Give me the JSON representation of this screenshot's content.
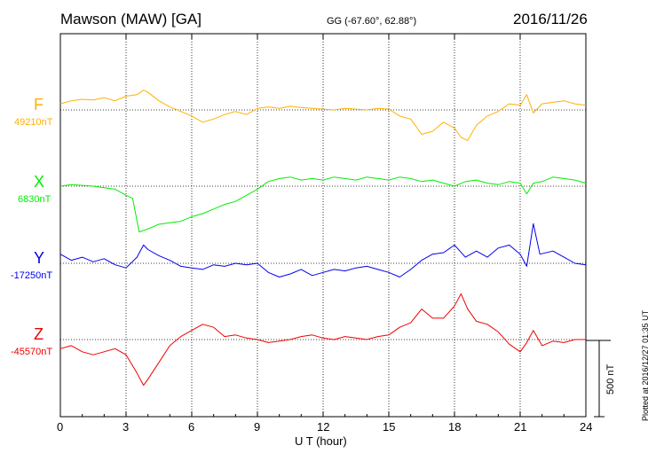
{
  "header": {
    "station": "Mawson (MAW)  [GA]",
    "coords": "GG (-67.60°,  62.88°)",
    "date": "2016/11/26"
  },
  "footer": {
    "plotted_note": "Plotted at 2016/12/27 01:35 UT"
  },
  "chart_data": {
    "type": "line",
    "xlabel": "U T (hour)",
    "xlim": [
      0,
      24
    ],
    "xticks": [
      "0",
      "3",
      "6",
      "9",
      "12",
      "15",
      "18",
      "21",
      "24"
    ],
    "scale_label": "500 nT",
    "scale_nT": 500,
    "series": [
      {
        "name": "F",
        "baseline": "49210nT",
        "color": "#ffb000",
        "x": [
          0,
          0.5,
          1,
          1.5,
          2,
          2.5,
          3,
          3.5,
          3.8,
          4,
          4.5,
          5,
          5.5,
          6,
          6.5,
          7,
          7.5,
          8,
          8.5,
          9,
          9.5,
          10,
          10.5,
          11,
          11.5,
          12,
          12.5,
          13,
          13.5,
          14,
          14.5,
          15,
          15.5,
          16,
          16.5,
          17,
          17.5,
          18,
          18.3,
          18.6,
          19,
          19.5,
          20,
          20.5,
          21,
          21.3,
          21.6,
          22,
          22.5,
          23,
          23.5,
          24
        ],
        "y": [
          40,
          60,
          70,
          65,
          80,
          60,
          90,
          100,
          130,
          115,
          60,
          20,
          -10,
          -40,
          -80,
          -60,
          -30,
          -10,
          -30,
          10,
          20,
          10,
          25,
          15,
          10,
          5,
          0,
          10,
          5,
          0,
          10,
          5,
          -40,
          -60,
          -160,
          -140,
          -80,
          -120,
          -180,
          -200,
          -100,
          -40,
          -10,
          40,
          30,
          100,
          -20,
          40,
          50,
          60,
          40,
          30
        ]
      },
      {
        "name": "X",
        "baseline": "6830nT",
        "color": "#00ee00",
        "x": [
          0,
          0.5,
          1,
          1.5,
          2,
          2.5,
          3,
          3.3,
          3.6,
          4,
          4.5,
          5,
          5.5,
          6,
          6.5,
          7,
          7.5,
          8,
          8.5,
          9,
          9.5,
          10,
          10.5,
          11,
          11.5,
          12,
          12.5,
          13,
          13.5,
          14,
          14.5,
          15,
          15.5,
          16,
          16.5,
          17,
          17.5,
          18,
          18.5,
          19,
          19.5,
          20,
          20.5,
          21,
          21.3,
          21.6,
          22,
          22.5,
          23,
          23.5,
          24
        ],
        "y": [
          0,
          10,
          5,
          0,
          -10,
          -20,
          -60,
          -80,
          -300,
          -280,
          -250,
          -240,
          -230,
          -200,
          -180,
          -150,
          -120,
          -100,
          -60,
          -20,
          30,
          50,
          60,
          40,
          50,
          40,
          60,
          50,
          40,
          60,
          50,
          40,
          60,
          50,
          30,
          40,
          20,
          0,
          30,
          40,
          20,
          10,
          30,
          20,
          -50,
          20,
          30,
          60,
          50,
          40,
          20
        ]
      },
      {
        "name": "Y",
        "baseline": "-17250nT",
        "color": "#0000ee",
        "x": [
          0,
          0.5,
          1,
          1.5,
          2,
          2.5,
          3,
          3.5,
          3.8,
          4,
          4.5,
          5,
          5.5,
          6,
          6.5,
          7,
          7.5,
          8,
          8.5,
          9,
          9.5,
          10,
          10.5,
          11,
          11.5,
          12,
          12.5,
          13,
          13.5,
          14,
          14.5,
          15,
          15.5,
          16,
          16.5,
          17,
          17.5,
          18,
          18.5,
          19,
          19.5,
          20,
          20.5,
          21,
          21.3,
          21.6,
          21.9,
          22.5,
          23,
          23.5,
          24
        ],
        "y": [
          60,
          20,
          40,
          10,
          30,
          -10,
          -30,
          40,
          120,
          90,
          50,
          20,
          -20,
          -30,
          -40,
          -10,
          -20,
          0,
          -10,
          0,
          -60,
          -90,
          -70,
          -40,
          -80,
          -60,
          -40,
          -50,
          -30,
          -20,
          -40,
          -60,
          -90,
          -40,
          20,
          60,
          70,
          120,
          40,
          80,
          40,
          100,
          120,
          60,
          -20,
          260,
          60,
          80,
          40,
          0,
          -10
        ]
      },
      {
        "name": "Z",
        "baseline": "-45570nT",
        "color": "#ee0000",
        "x": [
          0,
          0.5,
          1,
          1.5,
          2,
          2.5,
          3,
          3.5,
          3.8,
          4,
          4.5,
          5,
          5.5,
          6,
          6.5,
          7,
          7.5,
          8,
          8.5,
          9,
          9.5,
          10,
          10.5,
          11,
          11.5,
          12,
          12.5,
          13,
          13.5,
          14,
          14.5,
          15,
          15.5,
          16,
          16.5,
          17,
          17.5,
          18,
          18.3,
          18.6,
          19,
          19.5,
          20,
          20.5,
          21,
          21.3,
          21.6,
          22,
          22.5,
          23,
          23.5,
          24
        ],
        "y": [
          -60,
          -40,
          -80,
          -100,
          -80,
          -60,
          -100,
          -220,
          -300,
          -260,
          -150,
          -40,
          20,
          60,
          100,
          80,
          20,
          30,
          10,
          0,
          -20,
          -10,
          0,
          20,
          30,
          10,
          0,
          20,
          10,
          0,
          20,
          30,
          80,
          110,
          200,
          140,
          140,
          220,
          300,
          200,
          120,
          100,
          50,
          -30,
          -80,
          -20,
          60,
          -40,
          -10,
          -20,
          0,
          0
        ]
      }
    ]
  }
}
